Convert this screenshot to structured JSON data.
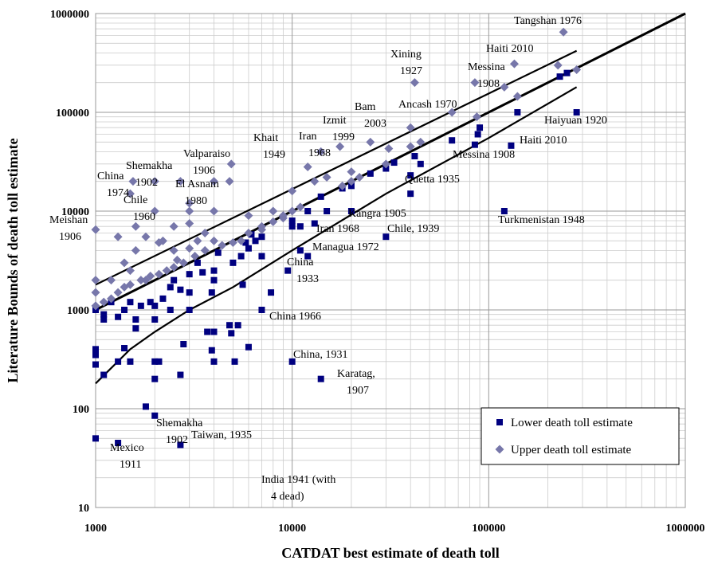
{
  "chart_data": {
    "type": "scatter",
    "x_label": "CATDAT best estimate of death toll",
    "y_label": "Literature Bounds of death toll estimate",
    "xlog": true,
    "ylog": true,
    "grid": true,
    "minor_grid": true,
    "xlim": [
      1000,
      1000000
    ],
    "ylim": [
      10,
      1000000
    ],
    "xticks": [
      1000,
      10000,
      100000,
      1000000
    ],
    "yticks": [
      10,
      100,
      1000,
      10000,
      100000,
      1000000
    ],
    "legend": "bottom-right",
    "series": [
      {
        "name": "Lower death toll estimate",
        "color": "#000080",
        "marker": "square",
        "x": [
          1000,
          1300,
          2700,
          1800,
          2000,
          1000,
          1000,
          1000,
          1100,
          1300,
          1400,
          1500,
          2000,
          2000,
          2100,
          2700,
          2800,
          3700,
          3900,
          4000,
          4000,
          4800,
          4900,
          5100,
          5300,
          6000,
          1600,
          1600,
          1900,
          2000,
          2000,
          2400,
          3000,
          3000,
          3900,
          4000,
          4000,
          5600,
          7000,
          7800,
          7000,
          9500,
          11000,
          12000,
          10000,
          14000,
          10000,
          11000,
          13000,
          15000,
          20000,
          30000,
          40000,
          40000,
          45000,
          65000,
          85000,
          90000,
          88000,
          130000,
          140000,
          120000,
          280000,
          230000,
          250000,
          1000,
          1100,
          1100,
          1200,
          1300,
          1400,
          1500,
          1700,
          2200,
          2400,
          2500,
          2700,
          3000,
          3500,
          3300,
          4200,
          5000,
          5500,
          6000,
          6500,
          7000,
          6200,
          5800,
          10000,
          12000,
          14000,
          18000,
          25000,
          30000,
          33000,
          42000,
          20000
        ],
        "values": [
          50,
          45,
          43,
          105,
          85,
          280,
          350,
          400,
          220,
          300,
          410,
          300,
          200,
          300,
          300,
          220,
          450,
          600,
          390,
          300,
          600,
          700,
          580,
          300,
          700,
          420,
          800,
          650,
          1200,
          1100,
          800,
          1000,
          1000,
          1500,
          1500,
          2500,
          2000,
          1800,
          1000,
          1500,
          3500,
          2500,
          4000,
          3500,
          300,
          200,
          8000,
          7000,
          7500,
          10000,
          10000,
          5500,
          15000,
          23000,
          30000,
          52000,
          47000,
          70000,
          60000,
          46000,
          100000,
          10000,
          100000,
          230000,
          250000,
          1000,
          900,
          800,
          1200,
          850,
          1000,
          1200,
          1100,
          1300,
          1700,
          2000,
          1600,
          2300,
          2400,
          3000,
          3800,
          3000,
          3500,
          4200,
          5000,
          5500,
          5800,
          4800,
          7000,
          10000,
          14000,
          17000,
          24000,
          27000,
          31000,
          36000,
          18000
        ]
      },
      {
        "name": "Upper death toll estimate",
        "color": "#7777aa",
        "marker": "diamond",
        "x": [
          1000,
          1000,
          1000,
          1000,
          1300,
          1400,
          1500,
          1550,
          1600,
          1600,
          1800,
          2000,
          2000,
          2100,
          2200,
          2500,
          2700,
          3000,
          3000,
          3000,
          3600,
          4000,
          4000,
          4000,
          4800,
          4900,
          5500,
          6000,
          7000,
          8000,
          9000,
          10000,
          10000,
          11000,
          12000,
          13000,
          14000,
          15000,
          17500,
          18000,
          20000,
          20000,
          22000,
          25000,
          30000,
          31000,
          40000,
          40000,
          42000,
          45000,
          65000,
          85000,
          87000,
          120000,
          135000,
          140000,
          225000,
          240000,
          280000,
          1100,
          1200,
          1300,
          1400,
          1500,
          1700,
          1900,
          2100,
          2300,
          2500,
          2800,
          3200,
          3600,
          4400,
          5000,
          6000,
          7000,
          8000,
          9000,
          1200,
          1500,
          1800,
          2600,
          3000,
          3300,
          2500
        ],
        "values": [
          6500,
          2000,
          1500,
          1100,
          5500,
          3000,
          15000,
          20000,
          7000,
          4000,
          5500,
          10000,
          20000,
          4800,
          5000,
          7000,
          20000,
          7500,
          10000,
          12000,
          6000,
          20000,
          10000,
          5000,
          20000,
          30000,
          5000,
          9000,
          7000,
          10000,
          8500,
          10000,
          16000,
          11000,
          28000,
          20000,
          40000,
          22000,
          45000,
          18000,
          25000,
          20000,
          22000,
          50000,
          30000,
          43000,
          70000,
          45000,
          200000,
          50000,
          100000,
          200000,
          90000,
          180000,
          310000,
          145000,
          300000,
          650000,
          270000,
          1200,
          1300,
          1500,
          1700,
          1800,
          2000,
          2200,
          2300,
          2500,
          2700,
          3000,
          3500,
          4000,
          4500,
          4800,
          6000,
          6500,
          7800,
          9000,
          2000,
          2500,
          2000,
          3200,
          4200,
          5000,
          4000
        ]
      }
    ],
    "fit_lines": [
      {
        "color": "#000000",
        "x": [
          1000,
          1000000
        ],
        "values": [
          1000,
          1000000
        ]
      },
      {
        "color": "#000000",
        "x": [
          1000,
          280000
        ],
        "values": [
          1800,
          420000
        ]
      },
      {
        "color": "#000000",
        "x": [
          1000,
          1500,
          2000,
          3000,
          5000,
          10000,
          30000,
          100000,
          280000
        ],
        "values": [
          180,
          400,
          600,
          1000,
          1700,
          4000,
          15000,
          55000,
          180000
        ]
      }
    ],
    "annotations": [
      [
        "Tangshan 1976"
      ],
      [
        "Xining",
        "1927"
      ],
      [
        "Haiti 2010"
      ],
      [
        "Messina",
        "1908"
      ],
      [
        "Ancash 1970"
      ],
      [
        "Bam",
        "2003"
      ],
      [
        "Izmit",
        "1999"
      ],
      [
        "Iran",
        "1968"
      ],
      [
        "Khait",
        "1949"
      ],
      [
        "Haiyuan 1920"
      ],
      [
        "Haiti 2010"
      ],
      [
        "Messina 1908"
      ],
      [
        "Shemakha",
        "1902"
      ],
      [
        "Valparaiso",
        "1906"
      ],
      [
        "China",
        "1974"
      ],
      [
        "El Asnam",
        "1980"
      ],
      [
        "Chile",
        "1960"
      ],
      [
        "Quetta 1935"
      ],
      [
        "Meishan",
        "1906"
      ],
      [
        "Kangra 1905"
      ],
      [
        "Turkmenistan 1948"
      ],
      [
        "Iran 1968"
      ],
      [
        "Chile, 1939"
      ],
      [
        "Managua 1972"
      ],
      [
        "China",
        "1933"
      ],
      [
        "China 1966"
      ],
      [
        "China, 1931"
      ],
      [
        "Karatag,",
        "1907"
      ],
      [
        "Shemakha",
        "1902"
      ],
      [
        "Taiwan, 1935"
      ],
      [
        "Mexico",
        "1911"
      ],
      [
        "India 1941 (with",
        "4 dead)"
      ]
    ]
  }
}
